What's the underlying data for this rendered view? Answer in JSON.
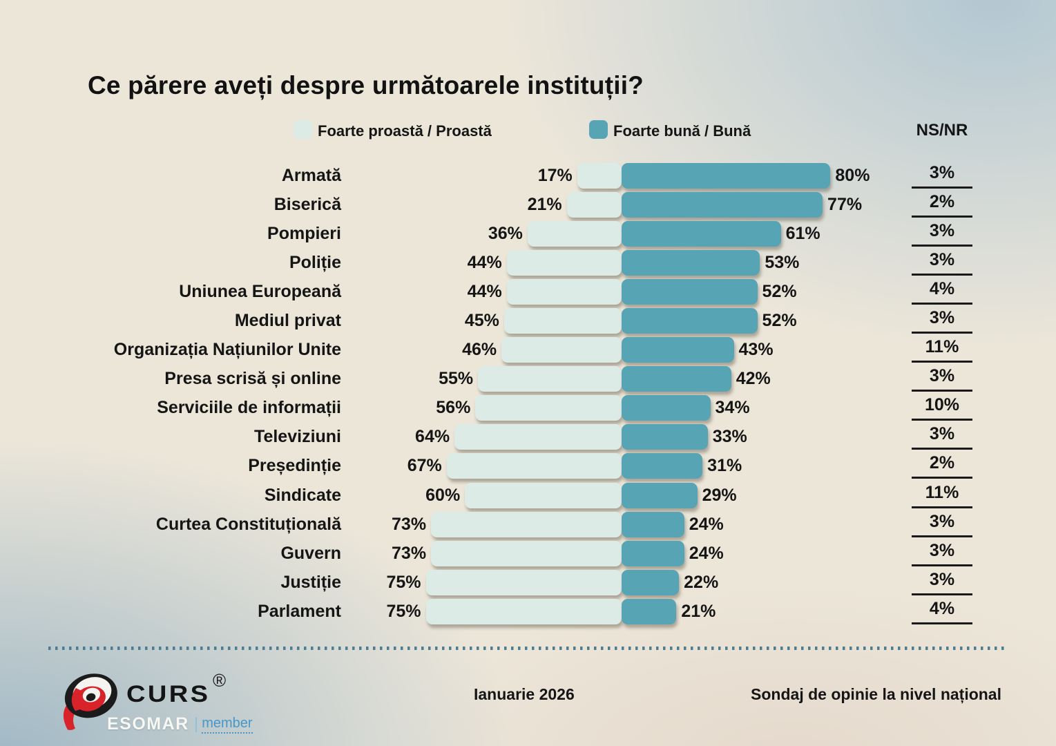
{
  "title": "Ce părere aveți despre următoarele instituții?",
  "legend": {
    "negative_label": "Foarte proastă / Proastă",
    "positive_label": "Foarte bună / Bună",
    "nsnr_label": "NS/NR"
  },
  "colors": {
    "negative": "#DCEBE6",
    "positive": "#57A4B4",
    "divider": "#4C7D92",
    "background_beige": "#ECE6D9",
    "background_blue": "#B5C9D4",
    "text": "#151515",
    "logo_red": "#D8232A",
    "member_blue": "#4896C8"
  },
  "chart_data": {
    "type": "bar",
    "orientation": "diverging-horizontal",
    "title": "Ce părere aveți despre următoarele instituții?",
    "unit": "%",
    "xlim": [
      0,
      100
    ],
    "legend_position": "top",
    "grid": false,
    "categories": [
      "Armată",
      "Biserică",
      "Pompieri",
      "Poliție",
      "Uniunea Europeană",
      "Mediul privat",
      "Organizația Națiunilor Unite",
      "Presa scrisă  și online",
      "Serviciile de informații",
      "Televiziuni",
      "Președinție",
      "Sindicate",
      "Curtea Constituțională",
      "Guvern",
      "Justiție",
      "Parlament"
    ],
    "series": [
      {
        "name": "Foarte proastă / Proastă",
        "values": [
          17,
          21,
          36,
          44,
          44,
          45,
          46,
          55,
          56,
          64,
          67,
          60,
          73,
          73,
          75,
          75
        ]
      },
      {
        "name": "Foarte bună / Bună",
        "values": [
          80,
          77,
          61,
          53,
          52,
          52,
          43,
          42,
          34,
          33,
          31,
          29,
          24,
          24,
          22,
          21
        ]
      },
      {
        "name": "NS/NR",
        "values": [
          3,
          2,
          3,
          3,
          4,
          3,
          11,
          3,
          10,
          3,
          2,
          11,
          3,
          3,
          3,
          4
        ]
      }
    ]
  },
  "footer": {
    "brand": "CURS",
    "registered": "®",
    "esomar": "ESOMAR",
    "member": "member",
    "date": "Ianuarie 2026",
    "note": "Sondaj de opinie la nivel național"
  }
}
